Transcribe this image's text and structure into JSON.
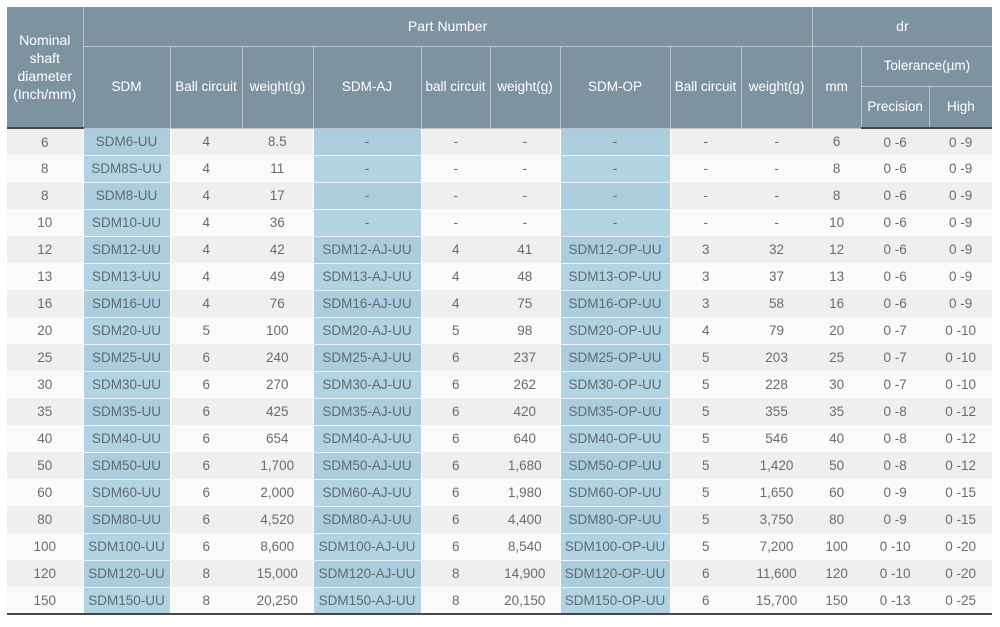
{
  "table": {
    "header": {
      "nominal": "Nominal shaft diameter (Inch/mm)",
      "part_number": "Part Number",
      "dr": "dr",
      "sdm": "SDM",
      "ball_circuit_1": "Ball circuit",
      "weight_1": "weight(g)",
      "sdm_aj": "SDM-AJ",
      "ball_circuit_2": "ball circuit",
      "weight_2": "weight(g)",
      "sdm_op": "SDM-OP",
      "ball_circuit_3": "Ball circuit",
      "weight_3": "weight(g)",
      "mm": "mm",
      "tolerance": "Tolerance(µm)",
      "precision": "Precision",
      "high": "High"
    },
    "rows": [
      [
        "6",
        "SDM6-UU",
        "4",
        "8.5",
        "-",
        "-",
        "-",
        "-",
        "-",
        "-",
        "6",
        "0 -6",
        "0 -9"
      ],
      [
        "8",
        "SDM8S-UU",
        "4",
        "11",
        "-",
        "-",
        "-",
        "-",
        "-",
        "-",
        "8",
        "0 -6",
        "0 -9"
      ],
      [
        "8",
        "SDM8-UU",
        "4",
        "17",
        "-",
        "-",
        "-",
        "-",
        "-",
        "-",
        "8",
        "0 -6",
        "0 -9"
      ],
      [
        "10",
        "SDM10-UU",
        "4",
        "36",
        "-",
        "-",
        "-",
        "-",
        "-",
        "-",
        "10",
        "0 -6",
        "0 -9"
      ],
      [
        "12",
        "SDM12-UU",
        "4",
        "42",
        "SDM12-AJ-UU",
        "4",
        "41",
        "SDM12-OP-UU",
        "3",
        "32",
        "12",
        "0 -6",
        "0 -9"
      ],
      [
        "13",
        "SDM13-UU",
        "4",
        "49",
        "SDM13-AJ-UU",
        "4",
        "48",
        "SDM13-OP-UU",
        "3",
        "37",
        "13",
        "0 -6",
        "0 -9"
      ],
      [
        "16",
        "SDM16-UU",
        "4",
        "76",
        "SDM16-AJ-UU",
        "4",
        "75",
        "SDM16-OP-UU",
        "3",
        "58",
        "16",
        "0 -6",
        "0 -9"
      ],
      [
        "20",
        "SDM20-UU",
        "5",
        "100",
        "SDM20-AJ-UU",
        "5",
        "98",
        "SDM20-OP-UU",
        "4",
        "79",
        "20",
        "0 -7",
        "0 -10"
      ],
      [
        "25",
        "SDM25-UU",
        "6",
        "240",
        "SDM25-AJ-UU",
        "6",
        "237",
        "SDM25-OP-UU",
        "5",
        "203",
        "25",
        "0 -7",
        "0 -10"
      ],
      [
        "30",
        "SDM30-UU",
        "6",
        "270",
        "SDM30-AJ-UU",
        "6",
        "262",
        "SDM30-OP-UU",
        "5",
        "228",
        "30",
        "0 -7",
        "0 -10"
      ],
      [
        "35",
        "SDM35-UU",
        "6",
        "425",
        "SDM35-AJ-UU",
        "6",
        "420",
        "SDM35-OP-UU",
        "5",
        "355",
        "35",
        "0 -8",
        "0 -12"
      ],
      [
        "40",
        "SDM40-UU",
        "6",
        "654",
        "SDM40-AJ-UU",
        "6",
        "640",
        "SDM40-OP-UU",
        "5",
        "546",
        "40",
        "0 -8",
        "0 -12"
      ],
      [
        "50",
        "SDM50-UU",
        "6",
        "1,700",
        "SDM50-AJ-UU",
        "6",
        "1,680",
        "SDM50-OP-UU",
        "5",
        "1,420",
        "50",
        "0 -8",
        "0 -12"
      ],
      [
        "60",
        "SDM60-UU",
        "6",
        "2,000",
        "SDM60-AJ-UU",
        "6",
        "1,980",
        "SDM60-OP-UU",
        "5",
        "1,650",
        "60",
        "0 -9",
        "0 -15"
      ],
      [
        "80",
        "SDM80-UU",
        "6",
        "4,520",
        "SDM80-AJ-UU",
        "6",
        "4,400",
        "SDM80-OP-UU",
        "5",
        "3,750",
        "80",
        "0 -9",
        "0 -15"
      ],
      [
        "100",
        "SDM100-UU",
        "6",
        "8,600",
        "SDM100-AJ-UU",
        "6",
        "8,540",
        "SDM100-OP-UU",
        "5",
        "7,200",
        "100",
        "0 -10",
        "0 -20"
      ],
      [
        "120",
        "SDM120-UU",
        "8",
        "15,000",
        "SDM120-AJ-UU",
        "8",
        "14,900",
        "SDM120-OP-UU",
        "6",
        "11,600",
        "120",
        "0 -10",
        "0 -20"
      ],
      [
        "150",
        "SDM150-UU",
        "8",
        "20,250",
        "SDM150-AJ-UU",
        "8",
        "20,150",
        "SDM150-OP-UU",
        "6",
        "15,700",
        "150",
        "0 -13",
        "0 -25"
      ]
    ]
  },
  "colors": {
    "header_bg": "#7e93a0",
    "header_text": "#ffffff",
    "row_odd_bg": "#efefef",
    "row_even_bg": "#fafafa",
    "highlight_col_odd": "#abcddd",
    "highlight_col_even": "#b2d3e1",
    "body_text": "#6b6b6b",
    "divider_dark": "#474747"
  }
}
